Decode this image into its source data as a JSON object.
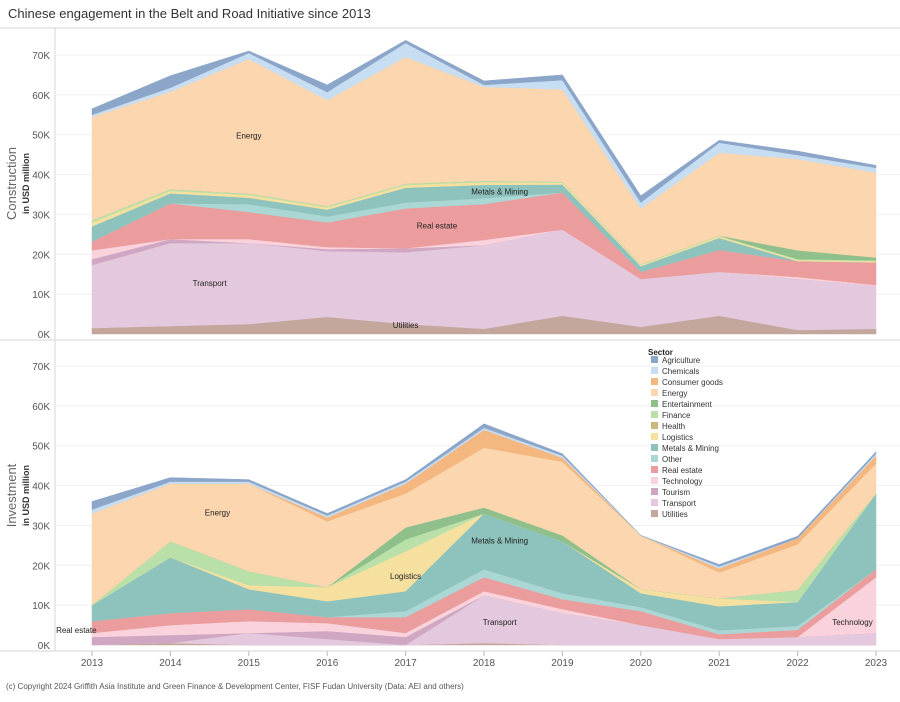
{
  "title": "Chinese engagement in the Belt and Road Initiative since 2013",
  "footer": "(c) Copyright 2024 Griffith Asia Institute and Green Finance & Development Center, FISF Fudan University (Data: AEI and others)",
  "legend_title": "Sector",
  "chart_data": [
    {
      "type": "area",
      "panel": "Construction",
      "ylabel": "Construction",
      "ylabel_sub": "in USD million",
      "ylim": [
        0,
        75000
      ],
      "y_ticks": [
        "0K",
        "10K",
        "20K",
        "30K",
        "40K",
        "50K",
        "60K",
        "70K"
      ],
      "x": [
        2013,
        2014,
        2015,
        2016,
        2017,
        2018,
        2019,
        2020,
        2021,
        2022,
        2023
      ],
      "series": [
        {
          "name": "Utilities",
          "values": [
            1500,
            2000,
            2500,
            4300,
            2500,
            1300,
            4600,
            1800,
            4600,
            1000,
            1300
          ]
        },
        {
          "name": "Transport",
          "values": [
            15800,
            20800,
            20300,
            16500,
            18000,
            21000,
            21600,
            12000,
            11000,
            12800,
            10800
          ]
        },
        {
          "name": "Tourism",
          "values": [
            1500,
            1000,
            0,
            500,
            1000,
            0,
            0,
            0,
            0,
            0,
            0
          ]
        },
        {
          "name": "Technology",
          "values": [
            2200,
            0,
            1000,
            500,
            0,
            1300,
            0,
            0,
            0,
            500,
            200
          ]
        },
        {
          "name": "Real estate",
          "values": [
            2200,
            9000,
            6800,
            6200,
            10000,
            9000,
            9300,
            1800,
            5500,
            4000,
            5700
          ]
        },
        {
          "name": "Other",
          "values": [
            0,
            0,
            2000,
            1500,
            1500,
            1500,
            0,
            0,
            0,
            0,
            0
          ]
        },
        {
          "name": "Metals & Mining",
          "values": [
            3800,
            2500,
            1600,
            1700,
            3700,
            3300,
            2000,
            1400,
            3000,
            0,
            0
          ]
        },
        {
          "name": "Logistics",
          "values": [
            1000,
            600,
            700,
            600,
            700,
            700,
            500,
            300,
            400,
            300,
            300
          ]
        },
        {
          "name": "Health",
          "values": [
            0,
            0,
            0,
            0,
            0,
            0,
            0,
            0,
            0,
            0,
            0
          ]
        },
        {
          "name": "Finance",
          "values": [
            500,
            400,
            300,
            300,
            300,
            300,
            200,
            200,
            200,
            200,
            200
          ]
        },
        {
          "name": "Entertainment",
          "values": [
            0,
            0,
            0,
            0,
            0,
            0,
            0,
            0,
            0,
            2200,
            700
          ]
        },
        {
          "name": "Energy",
          "values": [
            26000,
            24500,
            33800,
            26600,
            31800,
            23600,
            23200,
            14000,
            20800,
            22900,
            21300
          ]
        },
        {
          "name": "Consumer goods",
          "values": [
            0,
            0,
            0,
            0,
            0,
            0,
            0,
            0,
            0,
            0,
            0
          ]
        },
        {
          "name": "Chemicals",
          "values": [
            500,
            1000,
            1500,
            2000,
            3500,
            500,
            2300,
            1500,
            2500,
            1000,
            1200
          ]
        },
        {
          "name": "Agriculture",
          "values": [
            1500,
            3000,
            500,
            1800,
            700,
            1000,
            1300,
            1700,
            600,
            1000,
            600
          ]
        }
      ],
      "annotations": [
        {
          "text": "Energy",
          "x": 2015.0,
          "y": 49000
        },
        {
          "text": "Metals & Mining",
          "x": 2018.2,
          "y": 35000
        },
        {
          "text": "Real estate",
          "x": 2017.4,
          "y": 26500
        },
        {
          "text": "Transport",
          "x": 2014.5,
          "y": 12000
        },
        {
          "text": "Utilities",
          "x": 2017.0,
          "y": 1500
        }
      ]
    },
    {
      "type": "area",
      "panel": "Investment",
      "ylabel": "Investment",
      "ylabel_sub": "in USD million",
      "ylim": [
        0,
        75000
      ],
      "y_ticks": [
        "0K",
        "10K",
        "20K",
        "30K",
        "40K",
        "50K",
        "60K",
        "70K"
      ],
      "x": [
        2013,
        2014,
        2015,
        2016,
        2017,
        2018,
        2019,
        2020,
        2021,
        2022,
        2023
      ],
      "series": [
        {
          "name": "Utilities",
          "values": [
            0,
            500,
            0,
            0,
            0,
            500,
            0,
            0,
            0,
            0,
            0
          ]
        },
        {
          "name": "Transport",
          "values": [
            0,
            0,
            3000,
            1500,
            0,
            12000,
            8000,
            5000,
            1500,
            2000,
            3000
          ]
        },
        {
          "name": "Tourism",
          "values": [
            2000,
            2000,
            0,
            2000,
            2000,
            0,
            0,
            0,
            0,
            0,
            0
          ]
        },
        {
          "name": "Technology",
          "values": [
            1000,
            2500,
            3000,
            2000,
            1000,
            1000,
            1000,
            0,
            0,
            0,
            14000
          ]
        },
        {
          "name": "Real estate",
          "values": [
            3000,
            3000,
            3000,
            1500,
            4000,
            3500,
            2500,
            3500,
            1200,
            1800,
            2000
          ]
        },
        {
          "name": "Other",
          "values": [
            0,
            0,
            0,
            0,
            1500,
            2000,
            1500,
            1000,
            1000,
            1000,
            0
          ]
        },
        {
          "name": "Metals & Mining",
          "values": [
            4000,
            14000,
            5000,
            4000,
            5000,
            14000,
            13000,
            3500,
            6000,
            6000,
            19000
          ]
        },
        {
          "name": "Logistics",
          "values": [
            0,
            0,
            1000,
            3500,
            10000,
            0,
            0,
            1000,
            2000,
            0,
            0
          ]
        },
        {
          "name": "Health",
          "values": [
            0,
            0,
            0,
            0,
            0,
            0,
            0,
            0,
            0,
            0,
            0
          ]
        },
        {
          "name": "Finance",
          "values": [
            0,
            4000,
            3500,
            0,
            3000,
            0,
            0,
            0,
            0,
            3000,
            0
          ]
        },
        {
          "name": "Entertainment",
          "values": [
            0,
            0,
            0,
            0,
            3000,
            1500,
            1500,
            0,
            0,
            0,
            0
          ]
        },
        {
          "name": "Energy",
          "values": [
            23000,
            14500,
            22000,
            16500,
            8500,
            15000,
            18500,
            13500,
            6500,
            11500,
            7500
          ]
        },
        {
          "name": "Consumer goods",
          "values": [
            0,
            0,
            0,
            1000,
            2500,
            4500,
            1000,
            0,
            1000,
            1500,
            2000
          ]
        },
        {
          "name": "Chemicals",
          "values": [
            1000,
            500,
            500,
            500,
            500,
            500,
            500,
            0,
            500,
            0,
            500
          ]
        },
        {
          "name": "Agriculture",
          "values": [
            2000,
            1000,
            500,
            500,
            500,
            1000,
            500,
            0,
            500,
            500,
            500
          ]
        }
      ],
      "annotations": [
        {
          "text": "Energy",
          "x": 2014.6,
          "y": 32500
        },
        {
          "text": "Metals & Mining",
          "x": 2018.2,
          "y": 25500
        },
        {
          "text": "Logistics",
          "x": 2017.0,
          "y": 16500
        },
        {
          "text": "Transport",
          "x": 2018.2,
          "y": 5000
        },
        {
          "text": "Technology",
          "x": 2022.7,
          "y": 5000
        },
        {
          "text": "Real estate",
          "x": 2012.8,
          "y": 3000
        }
      ]
    }
  ],
  "colors": {
    "Agriculture": "#8ca6c9",
    "Chemicals": "#c7ddf1",
    "Consumer goods": "#f3b77f",
    "Energy": "#fbd6ae",
    "Entertainment": "#8fbf8a",
    "Finance": "#b8e0a8",
    "Health": "#c9b87a",
    "Logistics": "#f5e0a0",
    "Metals & Mining": "#8ec2bc",
    "Other": "#aad6d4",
    "Real estate": "#eb9c9c",
    "Technology": "#f9d2dc",
    "Tourism": "#cfa7c2",
    "Transport": "#e4c8dd",
    "Utilities": "#c4a79c"
  },
  "legend_order": [
    "Agriculture",
    "Chemicals",
    "Consumer goods",
    "Energy",
    "Entertainment",
    "Finance",
    "Health",
    "Logistics",
    "Metals & Mining",
    "Other",
    "Real estate",
    "Technology",
    "Tourism",
    "Transport",
    "Utilities"
  ]
}
